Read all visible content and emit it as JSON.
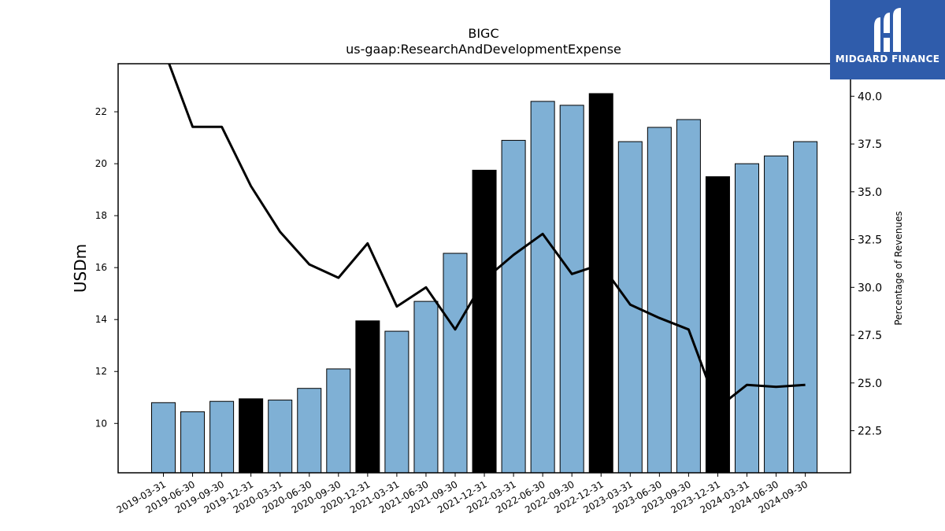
{
  "chart_data": {
    "type": "bar",
    "title": "BIGC",
    "subtitle": "us-gaap:ResearchAndDevelopmentExpense",
    "ylabel": "USDm",
    "y2label": "Percentage of Revenues",
    "categories": [
      "2019-03-31",
      "2019-06-30",
      "2019-09-30",
      "2019-12-31",
      "2020-03-31",
      "2020-06-30",
      "2020-09-30",
      "2020-12-31",
      "2021-03-31",
      "2021-06-30",
      "2021-09-30",
      "2021-12-31",
      "2022-03-31",
      "2022-06-30",
      "2022-09-30",
      "2022-12-31",
      "2023-03-31",
      "2023-06-30",
      "2023-09-30",
      "2023-12-31",
      "2024-03-31",
      "2024-06-30",
      "2024-09-30"
    ],
    "series": [
      {
        "type": "bar",
        "axis": "left",
        "values": [
          10.8,
          10.45,
          10.85,
          10.95,
          10.9,
          11.35,
          12.1,
          13.95,
          13.55,
          14.7,
          16.55,
          19.75,
          20.9,
          22.4,
          22.25,
          22.7,
          20.85,
          21.4,
          21.7,
          19.5,
          20.0,
          20.3,
          20.85
        ],
        "highlight": [
          false,
          false,
          false,
          true,
          false,
          false,
          false,
          true,
          false,
          false,
          false,
          true,
          false,
          false,
          false,
          true,
          false,
          false,
          false,
          true,
          false,
          false,
          false
        ]
      },
      {
        "type": "line",
        "axis": "right",
        "values": [
          42.5,
          38.4,
          38.4,
          35.3,
          32.9,
          31.2,
          30.5,
          32.3,
          29.0,
          30.0,
          27.8,
          30.4,
          31.7,
          32.8,
          30.7,
          31.2,
          29.1,
          28.4,
          27.8,
          23.7,
          24.9,
          24.8,
          24.9
        ]
      }
    ],
    "ylim": [
      8.1,
      23.85
    ],
    "y2lim": [
      20.3,
      41.7
    ],
    "yticks": [
      10,
      12,
      14,
      16,
      18,
      20,
      22
    ],
    "y2ticks": [
      "22.5",
      "25.0",
      "27.5",
      "30.0",
      "32.5",
      "35.0",
      "37.5",
      "40.0"
    ],
    "grid": false,
    "colors": {
      "bar": "#7fb0d5",
      "highlight": "#000000",
      "line": "#000000",
      "edge": "#000000"
    }
  },
  "logo": {
    "text": "MIDGARD FINANCE",
    "bg": "#2f5cab"
  }
}
